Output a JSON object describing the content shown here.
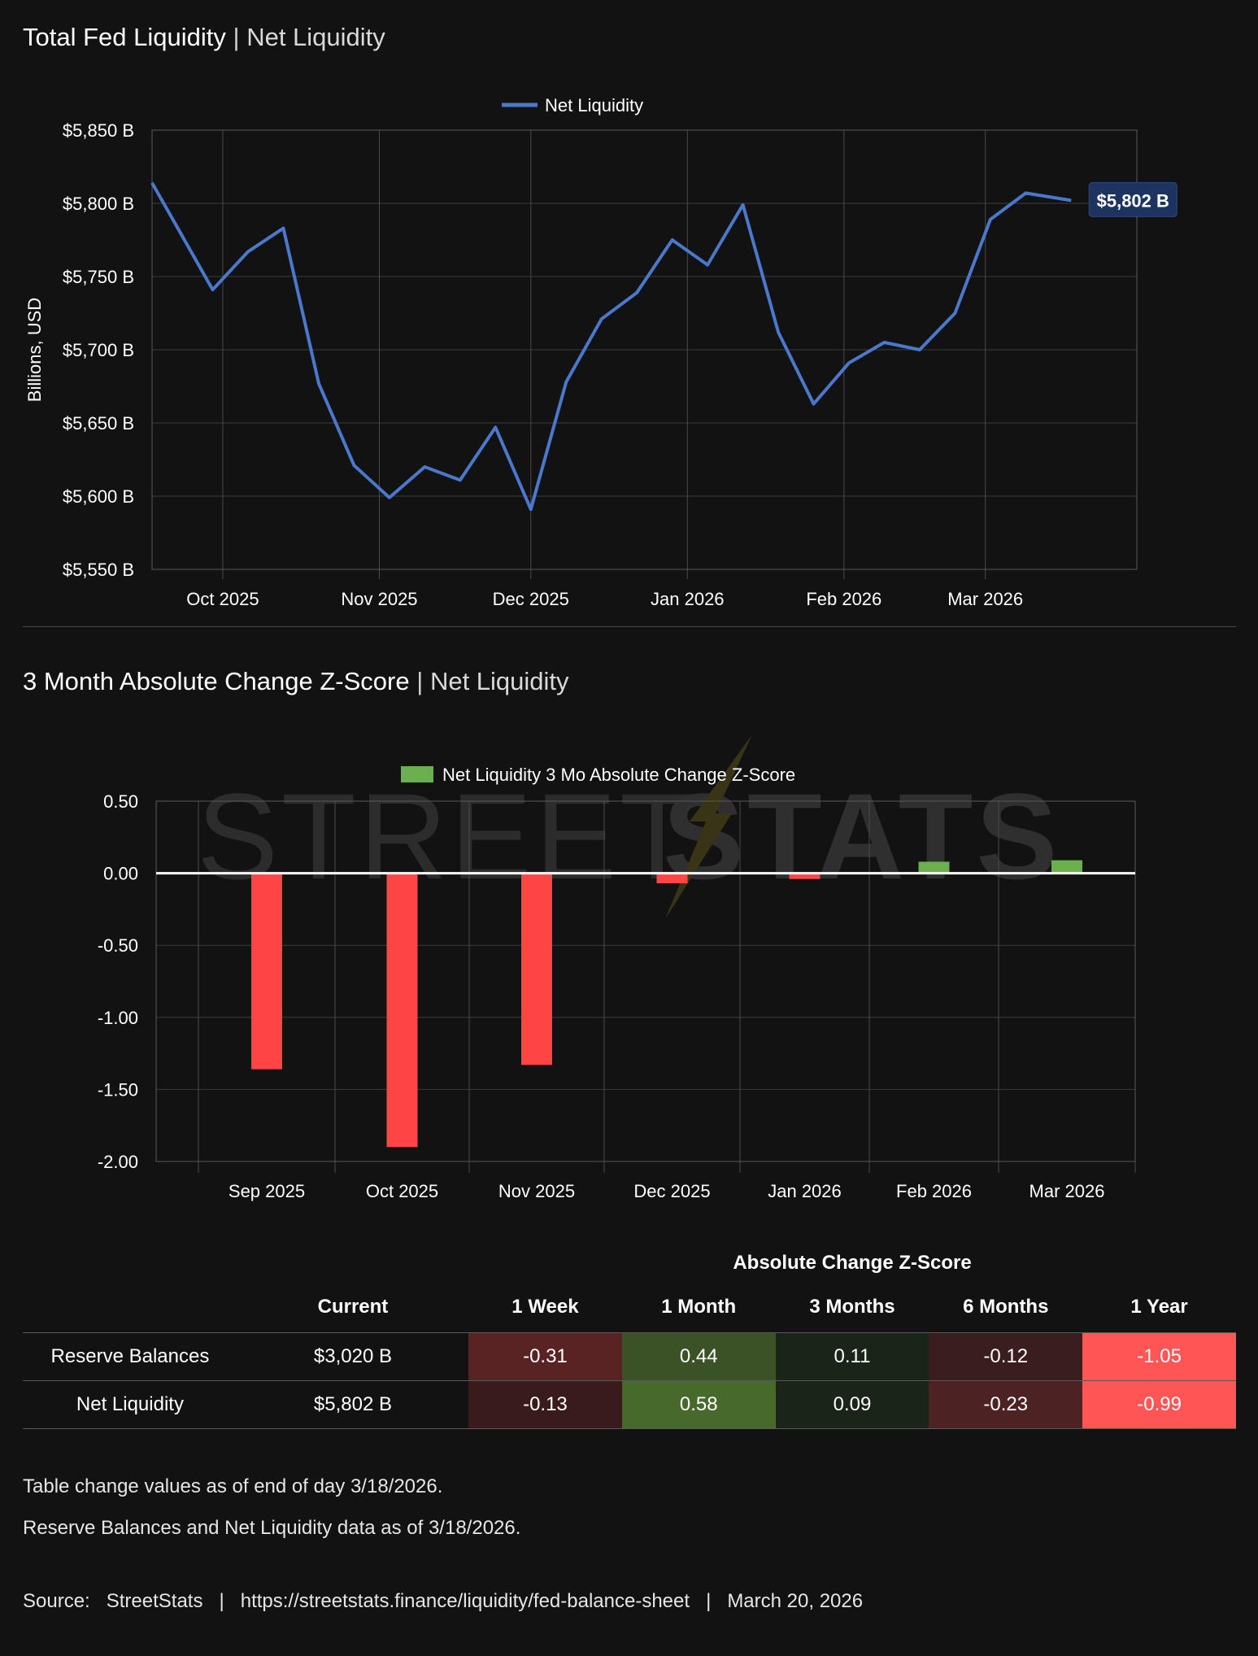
{
  "section1": {
    "title": "Total Fed Liquidity",
    "separator": "|",
    "subtitle": "Net Liquidity"
  },
  "section2": {
    "title": "3 Month Absolute Change Z-Score",
    "separator": "|",
    "subtitle": "Net Liquidity"
  },
  "chart_data": [
    {
      "type": "line",
      "title": "Total Fed Liquidity | Net Liquidity",
      "ylabel": "Billions, USD",
      "ylim": [
        5550,
        5850
      ],
      "yticks": [
        5550,
        5600,
        5650,
        5700,
        5750,
        5800,
        5850
      ],
      "ytick_labels": [
        "$5,550 B",
        "$5,600 B",
        "$5,650 B",
        "$5,700 B",
        "$5,750 B",
        "$5,800 B",
        "$5,850 B"
      ],
      "xlim": [
        "2025-09-17",
        "2026-03-31"
      ],
      "xtick_dates": [
        "2025-10-01",
        "2025-11-01",
        "2025-12-01",
        "2026-01-01",
        "2026-02-01",
        "2026-03-01"
      ],
      "xtick_labels": [
        "Oct 2025",
        "Nov 2025",
        "Dec 2025",
        "Jan 2026",
        "Feb 2026",
        "Mar 2026"
      ],
      "grid": true,
      "legend": "top-center",
      "line_color": "#4a78cc",
      "series": [
        {
          "name": "Net Liquidity",
          "x": [
            "2025-09-17",
            "2025-09-29",
            "2025-10-06",
            "2025-10-13",
            "2025-10-20",
            "2025-10-27",
            "2025-11-03",
            "2025-11-10",
            "2025-11-17",
            "2025-11-24",
            "2025-12-01",
            "2025-12-08",
            "2025-12-15",
            "2025-12-22",
            "2025-12-29",
            "2026-01-05",
            "2026-01-12",
            "2026-01-19",
            "2026-01-26",
            "2026-02-02",
            "2026-02-09",
            "2026-02-16",
            "2026-02-23",
            "2026-03-02",
            "2026-03-09",
            "2026-03-18"
          ],
          "y": [
            5814,
            5741,
            5767,
            5783,
            5677,
            5621,
            5599,
            5620,
            5611,
            5647,
            5591,
            5678,
            5721,
            5739,
            5775,
            5758,
            5799,
            5712,
            5663,
            5691,
            5705,
            5700,
            5725,
            5789,
            5807,
            5802
          ]
        }
      ],
      "annotation": "$5,802 B"
    },
    {
      "type": "bar",
      "title": "3 Month Absolute Change Z-Score | Net Liquidity",
      "ylim": [
        -2.0,
        0.5
      ],
      "yticks": [
        0.5,
        0.0,
        -0.5,
        -1.0,
        -1.5,
        -2.0
      ],
      "ytick_labels": [
        "0.50",
        "0.00",
        "-0.50",
        "-1.00",
        "-1.50",
        "-2.00"
      ],
      "categories": [
        "Sep 2025",
        "Oct 2025",
        "Nov 2025",
        "Dec 2025",
        "Jan 2026",
        "Feb 2026",
        "Mar 2026"
      ],
      "grid": true,
      "legend": "top-center",
      "positive_color": "#6ab04c",
      "negative_color": "#ff4444",
      "series": [
        {
          "name": "Net Liquidity 3 Mo Absolute Change Z-Score",
          "values": [
            -1.36,
            -1.9,
            -1.33,
            -0.07,
            -0.04,
            0.08,
            0.09
          ]
        }
      ],
      "watermark": {
        "light": "STREET",
        "bold": "STATS"
      }
    }
  ],
  "table": {
    "group_header": "Absolute Change Z-Score",
    "columns": [
      "",
      "Current",
      "1 Week",
      "1 Month",
      "3 Months",
      "6 Months",
      "1 Year"
    ],
    "rows": [
      {
        "label": "Reserve Balances",
        "current": "$3,020 B",
        "values": [
          "-0.31",
          "0.44",
          "0.11",
          "-0.12",
          "-1.05"
        ],
        "colors": [
          "#5a2323",
          "#3a5225",
          "#1a2418",
          "#3a1d1d",
          "#ff5555"
        ]
      },
      {
        "label": "Net Liquidity",
        "current": "$5,802 B",
        "values": [
          "-0.13",
          "0.58",
          "0.09",
          "-0.23",
          "-0.99"
        ],
        "colors": [
          "#3a1b1b",
          "#47692c",
          "#1a2418",
          "#4d2222",
          "#ff5555"
        ]
      }
    ]
  },
  "notes": [
    "Table change values as of end of day 3/18/2026.",
    "Reserve Balances and Net Liquidity data as of 3/18/2026."
  ],
  "source": {
    "label": "Source:",
    "name": "StreetStats",
    "url": "https://streetstats.finance/liquidity/fed-balance-sheet",
    "date": "March 20, 2026",
    "sep": "|"
  }
}
